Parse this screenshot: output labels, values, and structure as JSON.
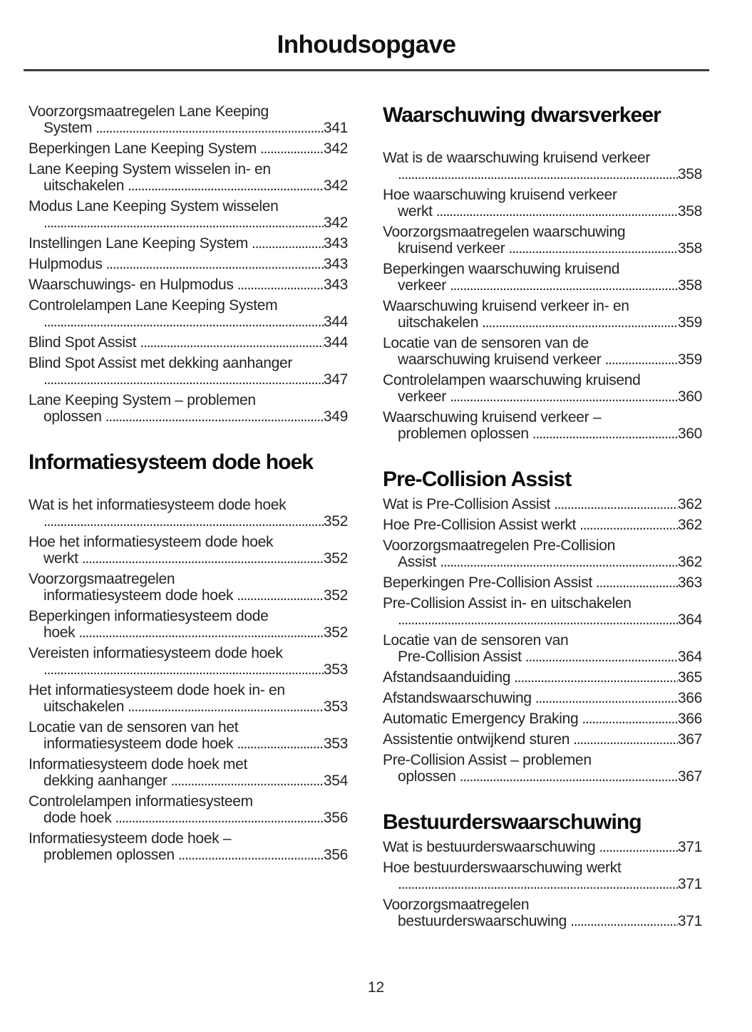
{
  "page": {
    "title": "Inhoudsopgave",
    "page_number": "12"
  },
  "columns": [
    {
      "blocks": [
        {
          "type": "entries",
          "items": [
            {
              "lines": [
                "Voorzorgsmaatregelen Lane Keeping"
              ],
              "tail": "System",
              "page": "341"
            },
            {
              "lines": [],
              "tail": "Beperkingen Lane Keeping System",
              "page": "342"
            },
            {
              "lines": [
                "Lane Keeping System wisselen in- en"
              ],
              "tail": "uitschakelen",
              "page": "342"
            },
            {
              "lines": [
                "Modus Lane Keeping System wisselen"
              ],
              "tail": "",
              "page": "342"
            },
            {
              "lines": [],
              "tail": "Instellingen Lane Keeping System",
              "page": "343"
            },
            {
              "lines": [],
              "tail": "Hulpmodus",
              "page": "343"
            },
            {
              "lines": [],
              "tail": "Waarschuwings- en Hulpmodus",
              "page": "343"
            },
            {
              "lines": [
                "Controlelampen Lane Keeping System"
              ],
              "tail": "",
              "page": "344"
            },
            {
              "lines": [],
              "tail": "Blind Spot Assist",
              "page": "344"
            },
            {
              "lines": [
                "Blind Spot Assist met dekking aanhanger"
              ],
              "tail": "",
              "page": "347"
            },
            {
              "lines": [
                "Lane Keeping System – problemen"
              ],
              "tail": "oplossen",
              "page": "349"
            }
          ]
        },
        {
          "type": "heading",
          "text": "Informatiesysteem dode hoek"
        },
        {
          "type": "entries",
          "items": [
            {
              "lines": [
                "Wat is het informatiesysteem dode hoek"
              ],
              "tail": "",
              "page": "352"
            },
            {
              "lines": [
                "Hoe het informatiesysteem dode hoek"
              ],
              "tail": "werkt",
              "page": "352"
            },
            {
              "lines": [
                "Voorzorgsmaatregelen"
              ],
              "tail": "informatiesysteem dode hoek",
              "page": "352"
            },
            {
              "lines": [
                "Beperkingen informatiesysteem dode"
              ],
              "tail": "hoek",
              "page": "352"
            },
            {
              "lines": [
                "Vereisten informatiesysteem dode hoek"
              ],
              "tail": "",
              "page": "353"
            },
            {
              "lines": [
                "Het informatiesysteem dode hoek in- en"
              ],
              "tail": "uitschakelen",
              "page": "353"
            },
            {
              "lines": [
                "Locatie van de sensoren van het"
              ],
              "tail": "informatiesysteem dode hoek",
              "page": "353"
            },
            {
              "lines": [
                "Informatiesysteem dode hoek met"
              ],
              "tail": "dekking aanhanger",
              "page": "354"
            },
            {
              "lines": [
                "Controlelampen informatiesysteem"
              ],
              "tail": "dode hoek",
              "page": "356"
            },
            {
              "lines": [
                "Informatiesysteem dode hoek –"
              ],
              "tail": "problemen oplossen",
              "page": "356"
            }
          ]
        }
      ]
    },
    {
      "blocks": [
        {
          "type": "heading",
          "text": "Waarschuwing dwarsverkeer"
        },
        {
          "type": "entries",
          "items": [
            {
              "lines": [
                "Wat is de waarschuwing kruisend verkeer"
              ],
              "tail": "",
              "page": "358"
            },
            {
              "lines": [
                "Hoe waarschuwing kruisend verkeer"
              ],
              "tail": "werkt",
              "page": "358"
            },
            {
              "lines": [
                "Voorzorgsmaatregelen waarschuwing"
              ],
              "tail": "kruisend verkeer",
              "page": "358"
            },
            {
              "lines": [
                "Beperkingen waarschuwing kruisend"
              ],
              "tail": "verkeer",
              "page": "358"
            },
            {
              "lines": [
                "Waarschuwing kruisend verkeer in- en"
              ],
              "tail": "uitschakelen",
              "page": "359"
            },
            {
              "lines": [
                "Locatie van de sensoren van de"
              ],
              "tail": "waarschuwing kruisend verkeer",
              "page": "359"
            },
            {
              "lines": [
                "Controlelampen waarschuwing kruisend"
              ],
              "tail": "verkeer",
              "page": "360"
            },
            {
              "lines": [
                "Waarschuwing kruisend verkeer –"
              ],
              "tail": "problemen oplossen",
              "page": "360"
            }
          ]
        },
        {
          "type": "heading",
          "text": "Pre-Collision Assist"
        },
        {
          "type": "entries",
          "items": [
            {
              "lines": [],
              "tail": "Wat is Pre-Collision Assist",
              "page": "362"
            },
            {
              "lines": [],
              "tail": "Hoe Pre-Collision Assist werkt",
              "page": "362"
            },
            {
              "lines": [
                "Voorzorgsmaatregelen Pre-Collision"
              ],
              "tail": "Assist",
              "page": "362"
            },
            {
              "lines": [],
              "tail": "Beperkingen Pre-Collision Assist",
              "page": "363"
            },
            {
              "lines": [
                "Pre-Collision Assist in- en uitschakelen"
              ],
              "tail": "",
              "page": "364"
            },
            {
              "lines": [
                "Locatie van de sensoren van"
              ],
              "tail": "Pre-Collision Assist",
              "page": "364"
            },
            {
              "lines": [],
              "tail": "Afstandsaanduiding",
              "page": "365"
            },
            {
              "lines": [],
              "tail": "Afstandswaarschuwing",
              "page": "366"
            },
            {
              "lines": [],
              "tail": "Automatic Emergency Braking",
              "page": "366"
            },
            {
              "lines": [],
              "tail": "Assistentie ontwijkend sturen",
              "page": "367"
            },
            {
              "lines": [
                "Pre-Collision Assist – problemen"
              ],
              "tail": "oplossen",
              "page": "367"
            }
          ]
        },
        {
          "type": "heading",
          "text": "Bestuurderswaarschuwing"
        },
        {
          "type": "entries",
          "items": [
            {
              "lines": [],
              "tail": "Wat is bestuurderswaarschuwing",
              "page": "371"
            },
            {
              "lines": [
                "Hoe bestuurderswaarschuwing werkt"
              ],
              "tail": "",
              "page": "371"
            },
            {
              "lines": [
                "Voorzorgsmaatregelen"
              ],
              "tail": "bestuurderswaarschuwing",
              "page": "371"
            }
          ]
        }
      ]
    }
  ]
}
